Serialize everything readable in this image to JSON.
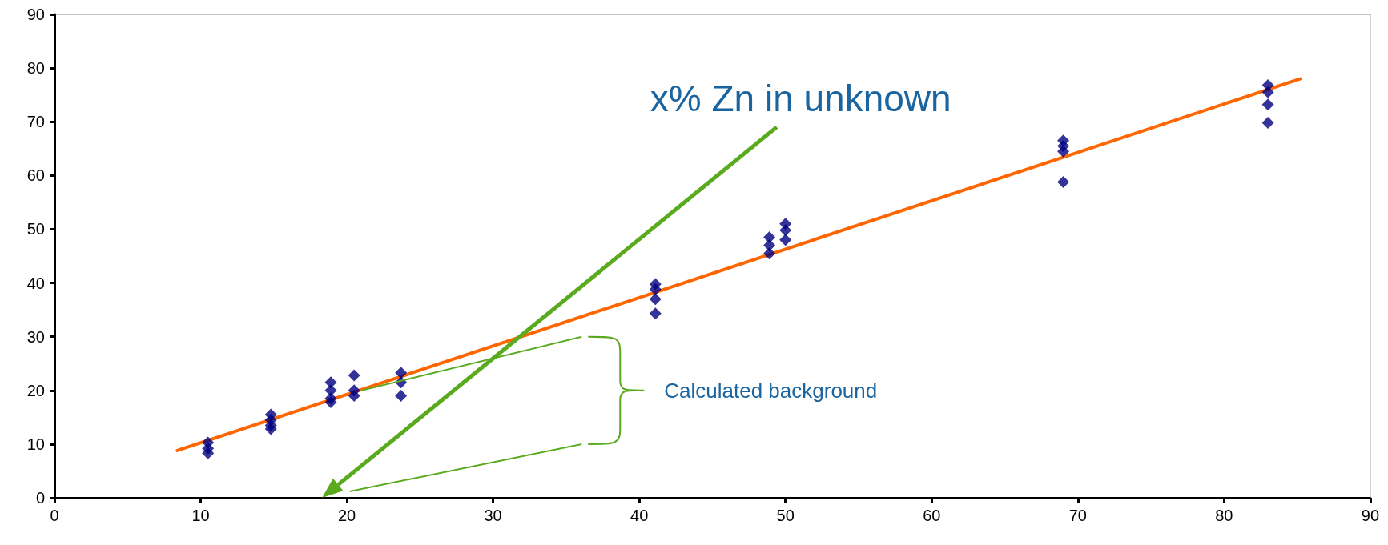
{
  "chart_data": {
    "type": "scatter",
    "xlim": [
      0,
      90
    ],
    "xticks": [
      0,
      10,
      20,
      30,
      40,
      50,
      60,
      70,
      80,
      90
    ],
    "ylim": [
      0,
      90
    ],
    "yticks": [
      0,
      10,
      20,
      30,
      40,
      50,
      60,
      70,
      80,
      90
    ],
    "grid": false,
    "series": [
      {
        "marker": "diamond",
        "color": "#000080",
        "x": [
          10.5,
          10.5,
          10.5,
          14.8,
          14.8,
          14.8,
          14.8,
          18.9,
          18.9,
          18.9,
          18.9,
          20.5,
          20.5,
          20.5,
          23.7,
          23.7,
          23.7,
          41.1,
          41.1,
          41.1,
          41.1,
          48.9,
          48.9,
          48.9,
          50,
          50,
          50,
          69,
          69,
          69,
          69,
          83,
          83,
          83,
          83
        ],
        "values": [
          10.3,
          9.2,
          8.3,
          15.5,
          14.5,
          13.5,
          12.8,
          21.5,
          20,
          18.5,
          17.8,
          22.8,
          20,
          19,
          23.3,
          21.5,
          19,
          39.8,
          38.8,
          37,
          34.3,
          48.5,
          47,
          45.5,
          51,
          49.8,
          48,
          66.5,
          65.5,
          64.5,
          58.8,
          76.8,
          75.5,
          73.2,
          69.8
        ]
      },
      {
        "type": "line",
        "color": "#ff6600",
        "x": [
          8.4,
          85.2
        ],
        "values": [
          8.8,
          78
        ]
      }
    ],
    "annotations": [
      "x% Zn in unknown",
      "Calculated background"
    ]
  }
}
